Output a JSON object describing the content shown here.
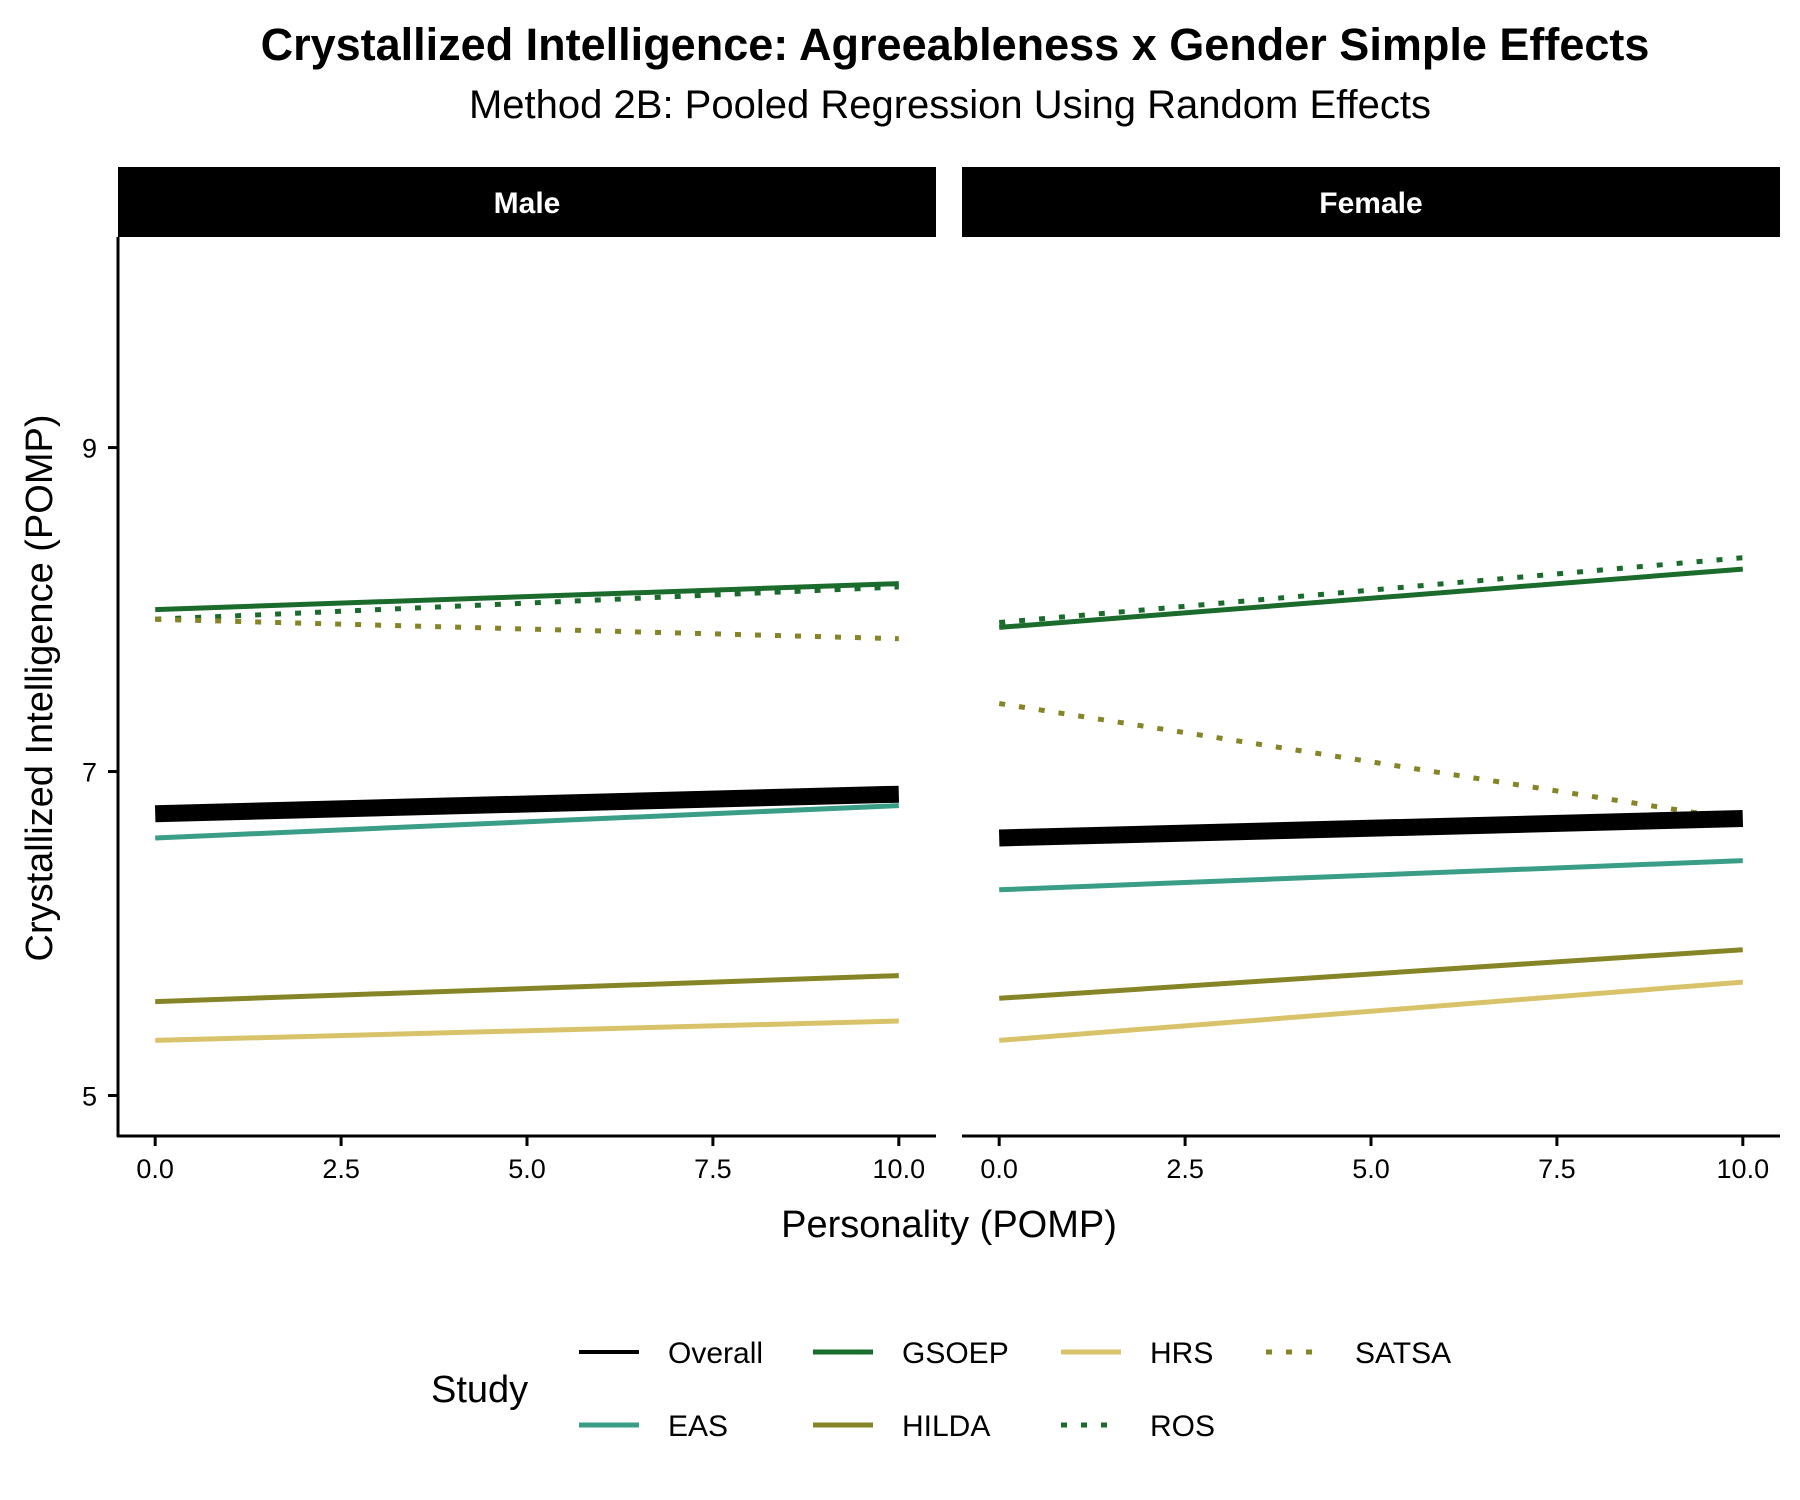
{
  "chart_data": {
    "type": "line",
    "title": "Crystallized Intelligence: Agreeableness x Gender Simple Effects",
    "subtitle": "Method 2B: Pooled Regression Using Random Effects",
    "xlabel": "Personality (POMP)",
    "ylabel": "Crystallized Intelligence (POMP)",
    "xlim": [
      -0.5,
      10.5
    ],
    "ylim": [
      4.75,
      10.3
    ],
    "x_ticks": [
      0,
      2.5,
      5,
      7.5,
      10
    ],
    "x_tick_labels": [
      "0.0",
      "2.5",
      "5.0",
      "7.5",
      "10.0"
    ],
    "y_ticks": [
      5,
      7,
      9
    ],
    "y_tick_labels": [
      "5",
      "7",
      "9"
    ],
    "grid": false,
    "legend_title": "Study",
    "legend_position": "bottom",
    "facets": [
      "Male",
      "Female"
    ],
    "series": [
      {
        "name": "Overall",
        "color": "#000000",
        "dash": "solid",
        "width": "thick",
        "values": {
          "Male": [
            [
              0,
              6.74
            ],
            [
              10,
              6.86
            ]
          ],
          "Female": [
            [
              0,
              6.59
            ],
            [
              10,
              6.71
            ]
          ]
        }
      },
      {
        "name": "EAS",
        "color": "#3a9e87",
        "dash": "solid",
        "width": "normal",
        "values": {
          "Male": [
            [
              0,
              6.59
            ],
            [
              10,
              6.79
            ]
          ],
          "Female": [
            [
              0,
              6.27
            ],
            [
              10,
              6.45
            ]
          ]
        }
      },
      {
        "name": "GSOEP",
        "color": "#1a6b2c",
        "dash": "solid",
        "width": "normal",
        "values": {
          "Male": [
            [
              0,
              8.0
            ],
            [
              10,
              8.16
            ]
          ],
          "Female": [
            [
              0,
              7.89
            ],
            [
              10,
              8.25
            ]
          ]
        }
      },
      {
        "name": "HILDA",
        "color": "#858527",
        "dash": "solid",
        "width": "normal",
        "values": {
          "Male": [
            [
              0,
              5.58
            ],
            [
              10,
              5.74
            ]
          ],
          "Female": [
            [
              0,
              5.6
            ],
            [
              10,
              5.9
            ]
          ]
        }
      },
      {
        "name": "HRS",
        "color": "#d9c36a",
        "dash": "solid",
        "width": "normal",
        "values": {
          "Male": [
            [
              0,
              5.34
            ],
            [
              10,
              5.46
            ]
          ],
          "Female": [
            [
              0,
              5.34
            ],
            [
              10,
              5.7
            ]
          ]
        }
      },
      {
        "name": "ROS",
        "color": "#1a6b2c",
        "dash": "dotted",
        "width": "normal",
        "values": {
          "Male": [
            [
              0,
              7.94
            ],
            [
              10,
              8.14
            ]
          ],
          "Female": [
            [
              0,
              7.92
            ],
            [
              10,
              8.32
            ]
          ]
        }
      },
      {
        "name": "SATSA",
        "color": "#858527",
        "dash": "dotted",
        "width": "normal",
        "values": {
          "Male": [
            [
              0,
              7.94
            ],
            [
              10,
              7.82
            ]
          ],
          "Female": [
            [
              0,
              7.42
            ],
            [
              10,
              6.7
            ]
          ]
        }
      }
    ]
  }
}
